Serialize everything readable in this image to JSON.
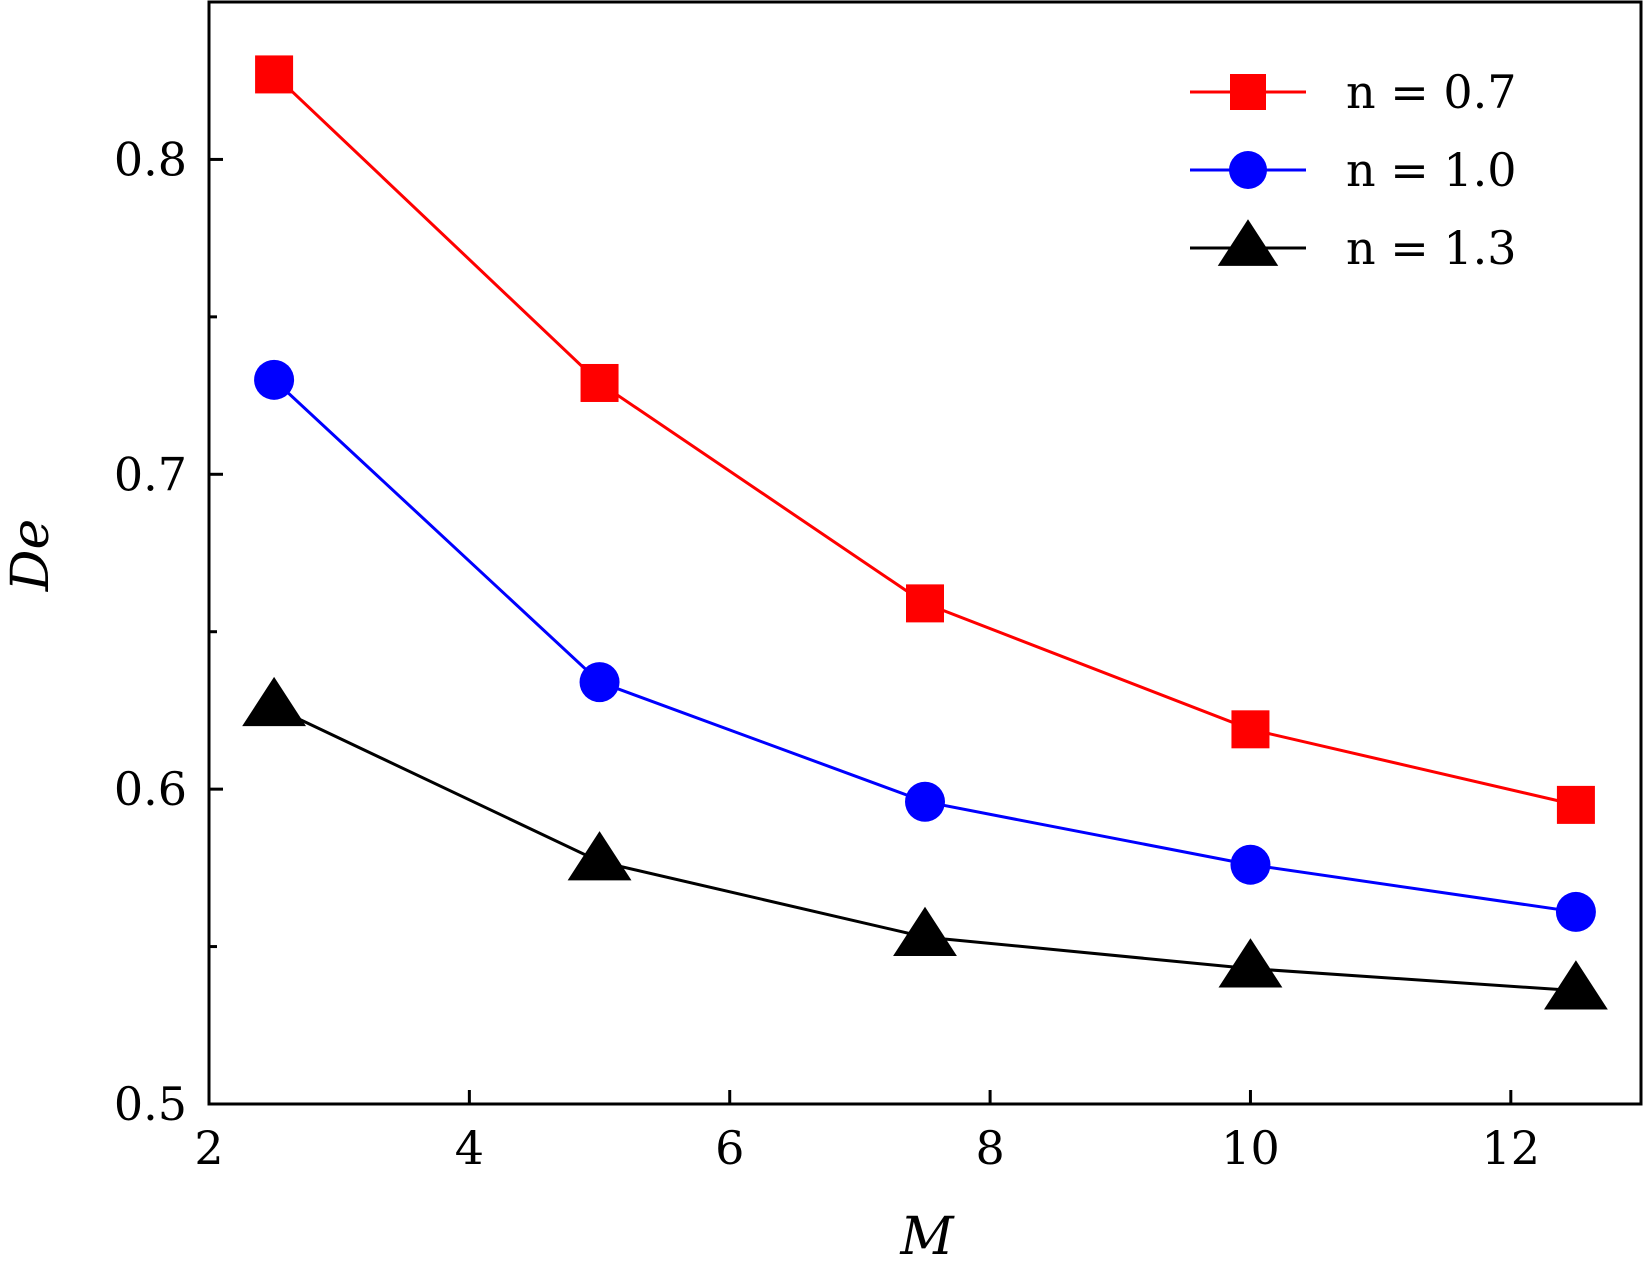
{
  "chart_data": {
    "type": "line",
    "xlabel": "M",
    "ylabel": "De",
    "xlim": [
      2,
      13
    ],
    "ylim": [
      0.5,
      0.85
    ],
    "xticks": [
      2,
      4,
      6,
      8,
      10,
      12
    ],
    "xtick_labels": [
      "2",
      "4",
      "6",
      "8",
      "10",
      "12"
    ],
    "yticks_major": [
      0.5,
      0.6,
      0.7,
      0.8
    ],
    "ytick_labels": [
      "0.5",
      "0.6",
      "0.7",
      "0.8"
    ],
    "yticks_minor": [
      0.55,
      0.65,
      0.75
    ],
    "grid": false,
    "legend_position": "top-right",
    "x": [
      2.5,
      5,
      7.5,
      10,
      12.5
    ],
    "series": [
      {
        "name": "n = 0.7",
        "color": "#ff0000",
        "marker": "square",
        "values": [
          0.827,
          0.729,
          0.659,
          0.619,
          0.595
        ]
      },
      {
        "name": "n = 1.0",
        "color": "#0000ff",
        "marker": "circle",
        "values": [
          0.73,
          0.634,
          0.596,
          0.576,
          0.561
        ]
      },
      {
        "name": "n = 1.3",
        "color": "#000000",
        "marker": "triangle",
        "values": [
          0.626,
          0.577,
          0.553,
          0.543,
          0.536
        ]
      }
    ]
  }
}
